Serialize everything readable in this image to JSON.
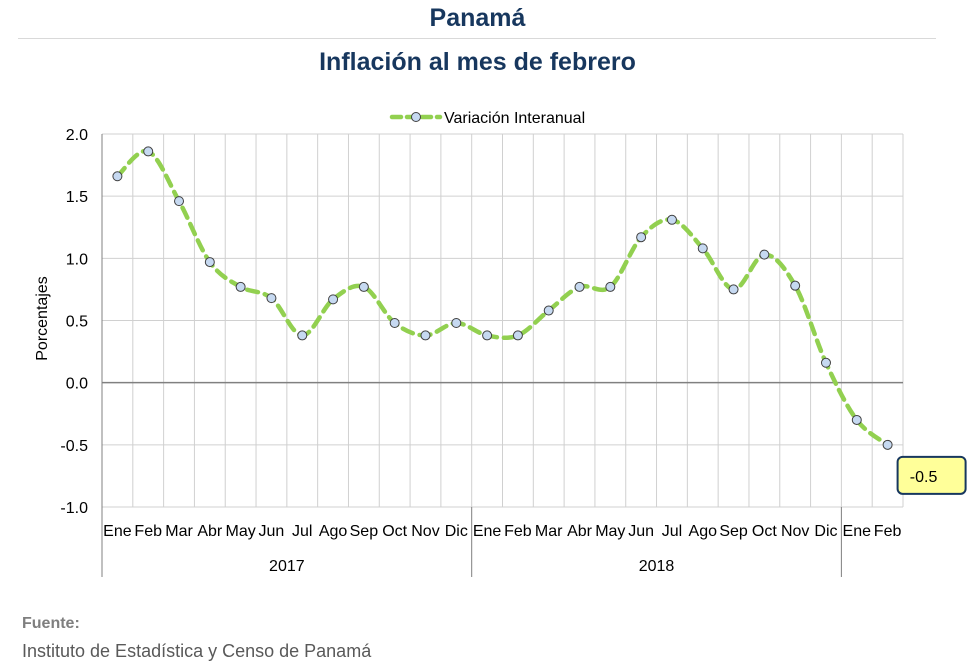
{
  "header": {
    "country": "Panamá",
    "title": "Inflación al mes de febrero"
  },
  "source": {
    "label": "Fuente:",
    "text": "Instituto de Estadística y Censo de Panamá"
  },
  "chart_data": {
    "type": "line",
    "title": "Inflación al mes de febrero",
    "ylabel": "Porcentajes",
    "xlabel": "",
    "ylim": [
      -1.0,
      2.0
    ],
    "yticks": [
      2.0,
      1.5,
      1.0,
      0.5,
      0.0,
      -0.5,
      -1.0
    ],
    "ytick_labels": [
      "2.0",
      "1.5",
      "1.0",
      "0.5",
      "0.0",
      "-0.5",
      "-1.0"
    ],
    "grid": true,
    "legend_position": "top",
    "categories": [
      "Ene",
      "Feb",
      "Mar",
      "Abr",
      "May",
      "Jun",
      "Jul",
      "Ago",
      "Sep",
      "Oct",
      "Nov",
      "Dic",
      "Ene",
      "Feb",
      "Mar",
      "Abr",
      "May",
      "Jun",
      "Jul",
      "Ago",
      "Sep",
      "Oct",
      "Nov",
      "Dic",
      "Ene",
      "Feb"
    ],
    "groups": [
      {
        "label": "2017",
        "count": 12
      },
      {
        "label": "2018",
        "count": 12
      },
      {
        "label": "",
        "count": 2
      }
    ],
    "series": [
      {
        "name": "Variación Interanual",
        "color": "#92d050",
        "marker_color": "#c6d9f1",
        "values": [
          1.66,
          1.86,
          1.46,
          0.97,
          0.77,
          0.68,
          0.38,
          0.67,
          0.77,
          0.48,
          0.38,
          0.48,
          0.38,
          0.38,
          0.58,
          0.77,
          0.77,
          1.17,
          1.31,
          1.08,
          0.75,
          1.03,
          0.78,
          0.16,
          -0.3,
          -0.5
        ]
      }
    ],
    "annotation": {
      "text": "-0.5",
      "index": 25
    }
  }
}
